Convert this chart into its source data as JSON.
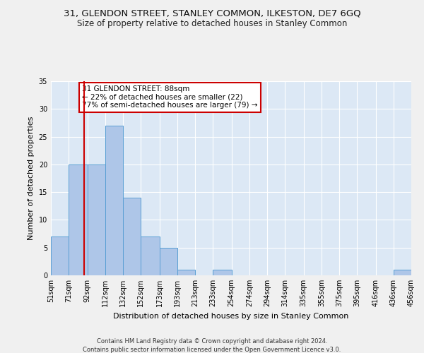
{
  "title1": "31, GLENDON STREET, STANLEY COMMON, ILKESTON, DE7 6GQ",
  "title2": "Size of property relative to detached houses in Stanley Common",
  "xlabel": "Distribution of detached houses by size in Stanley Common",
  "ylabel": "Number of detached properties",
  "footnote1": "Contains HM Land Registry data © Crown copyright and database right 2024.",
  "footnote2": "Contains public sector information licensed under the Open Government Licence v3.0.",
  "bin_edges": [
    51,
    71,
    92,
    112,
    132,
    152,
    173,
    193,
    213,
    233,
    254,
    274,
    294,
    314,
    335,
    355,
    375,
    395,
    416,
    436,
    456
  ],
  "bar_heights": [
    7,
    20,
    20,
    27,
    14,
    7,
    5,
    1,
    0,
    1,
    0,
    0,
    0,
    0,
    0,
    0,
    0,
    0,
    0,
    1
  ],
  "bar_color": "#aec6e8",
  "bar_edge_color": "#5a9fd4",
  "property_size": 88,
  "vline_color": "#cc0000",
  "annotation_text": "31 GLENDON STREET: 88sqm\n← 22% of detached houses are smaller (22)\n77% of semi-detached houses are larger (79) →",
  "annotation_box_color": "#ffffff",
  "annotation_box_edge": "#cc0000",
  "ylim": [
    0,
    35
  ],
  "yticks": [
    0,
    5,
    10,
    15,
    20,
    25,
    30,
    35
  ],
  "bg_color": "#dce8f5",
  "grid_color": "#ffffff",
  "title1_fontsize": 9.5,
  "title2_fontsize": 8.5,
  "xlabel_fontsize": 8,
  "ylabel_fontsize": 8,
  "tick_label_fontsize": 7,
  "annotation_fontsize": 7.5,
  "footnote_fontsize": 6
}
